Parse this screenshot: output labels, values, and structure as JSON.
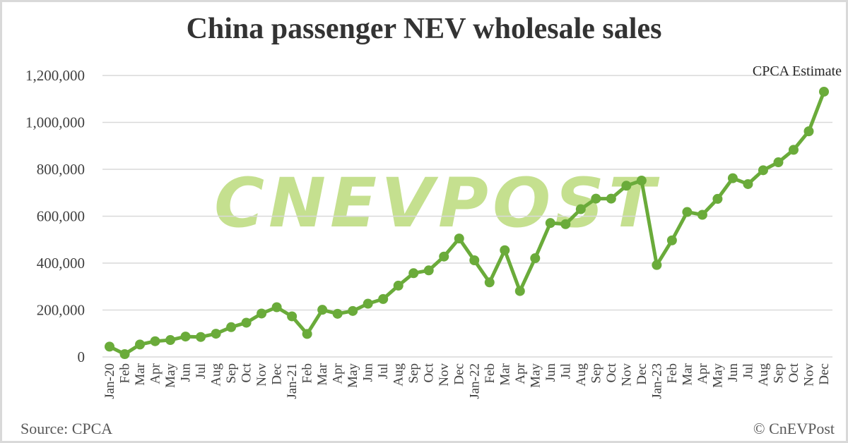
{
  "chart_data": {
    "type": "line",
    "title": "China passenger NEV wholesale sales",
    "xlabel": "",
    "ylabel": "",
    "ylim": [
      0,
      1200000
    ],
    "yticks": [
      0,
      200000,
      400000,
      600000,
      800000,
      1000000,
      1200000
    ],
    "ytick_labels": [
      "0",
      "200,000",
      "400,000",
      "600,000",
      "800,000",
      "1,000,000",
      "1,200,000"
    ],
    "grid": true,
    "legend": null,
    "categories": [
      "Jan-20",
      "Feb",
      "Mar",
      "Apr",
      "May",
      "Jun",
      "Jul",
      "Aug",
      "Sep",
      "Oct",
      "Nov",
      "Dec",
      "Jan-21",
      "Feb",
      "Mar",
      "Apr",
      "May",
      "Jun",
      "Jul",
      "Aug",
      "Sep",
      "Oct",
      "Nov",
      "Dec",
      "Jan-22",
      "Feb",
      "Mar",
      "Apr",
      "May",
      "Jun",
      "Jul",
      "Aug",
      "Sep",
      "Oct",
      "Nov",
      "Dec",
      "Jan-23",
      "Feb",
      "Mar",
      "Apr",
      "May",
      "Jun",
      "Jul",
      "Aug",
      "Sep",
      "Oct",
      "Nov",
      "Dec"
    ],
    "series": [
      {
        "name": "NEV wholesale sales",
        "color": "#6aab3a",
        "values": [
          44000,
          12000,
          53000,
          67000,
          72000,
          87000,
          85000,
          99000,
          127000,
          146000,
          185000,
          212000,
          173000,
          98000,
          201000,
          184000,
          196000,
          227000,
          247000,
          304000,
          357000,
          369000,
          428000,
          505000,
          412000,
          318000,
          455000,
          281000,
          421000,
          571000,
          566000,
          630000,
          675000,
          675000,
          730000,
          752000,
          392000,
          497000,
          618000,
          606000,
          674000,
          762000,
          737000,
          796000,
          830000,
          883000,
          962000,
          1131000
        ]
      }
    ],
    "annotations": [
      {
        "text": "CPCA Estimate",
        "target": "Dec (2023)"
      }
    ]
  },
  "header": {
    "title": "China passenger NEV wholesale sales"
  },
  "footer": {
    "source": "Source: CPCA",
    "credit": "© CnEVPost"
  },
  "watermark": {
    "text": "CNEVPOST",
    "color": "#c5e08f"
  },
  "annotation": {
    "text": "CPCA Estimate"
  },
  "colors": {
    "line": "#6aab3a",
    "grid": "#d9d9d9",
    "text": "#404040"
  }
}
